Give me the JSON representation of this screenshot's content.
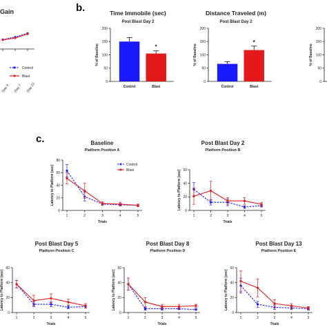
{
  "panels": {
    "b": "b.",
    "c": "c."
  },
  "colors": {
    "control": "#1a1aff",
    "blast": "#e41a1a"
  },
  "chart_data": [
    {
      "id": "weight-gain",
      "type": "line",
      "title": "Gain",
      "x": [
        "Day 3",
        "Day 7",
        "Day 13"
      ],
      "series": [
        {
          "name": "Control",
          "values": [
            3,
            7,
            13
          ]
        },
        {
          "name": "Blast",
          "values": [
            2.5,
            5.5,
            12
          ]
        }
      ],
      "legend": [
        "Control",
        "Blast"
      ]
    },
    {
      "id": "time-immobile",
      "type": "bar",
      "title": "Time Immobile (sec)",
      "subtitle": "Post Blast Day 2",
      "ylabel": "% of Baseline",
      "categories": [
        "Control",
        "Blast"
      ],
      "values": [
        150,
        105
      ],
      "errors": [
        15,
        10
      ],
      "ylim": [
        0,
        200
      ],
      "yticks": [
        0,
        50,
        100,
        150,
        200
      ],
      "annotation": "*"
    },
    {
      "id": "distance-traveled",
      "type": "bar",
      "title": "Distance Traveled (m)",
      "subtitle": "Post Blast Day 2",
      "ylabel": "% of Baseline",
      "categories": [
        "Control",
        "Blast"
      ],
      "values": [
        66,
        118
      ],
      "errors": [
        8,
        15
      ],
      "ylim": [
        0,
        200
      ],
      "yticks": [
        0,
        50,
        100,
        150,
        200
      ],
      "annotation": "*"
    },
    {
      "id": "third-bar-panel",
      "type": "bar",
      "ylabel": "% of Baseline",
      "categories": [],
      "values": []
    },
    {
      "id": "baseline",
      "type": "line",
      "title": "Baseline",
      "subtitle": "Platform Position A",
      "xlabel": "Trials",
      "ylabel": "Latency to Platform (sec)",
      "x": [
        1,
        2,
        3,
        4,
        5
      ],
      "ylim": [
        0,
        80
      ],
      "yticks": [
        0,
        20,
        40,
        60,
        80
      ],
      "series": [
        {
          "name": "Control",
          "values": [
            63,
            22,
            10,
            9,
            8
          ],
          "errors": [
            10,
            7,
            2,
            2,
            2
          ]
        },
        {
          "name": "Blast",
          "values": [
            51,
            31,
            11,
            10,
            8
          ],
          "errors": [
            9,
            12,
            3,
            3,
            2
          ]
        }
      ],
      "legend": [
        "Control",
        "Blast"
      ]
    },
    {
      "id": "post-blast-day-2",
      "type": "line",
      "title": "Post  Blast Day 2",
      "subtitle": "Platform Position B",
      "xlabel": "Trials",
      "ylabel": "Latency to Platform (sec)",
      "x": [
        1,
        2,
        3,
        4,
        5
      ],
      "ylim": [
        0,
        60
      ],
      "yticks": [
        0,
        20,
        40,
        60
      ],
      "series": [
        {
          "name": "Control",
          "values": [
            31,
            12,
            12,
            5,
            7
          ],
          "errors": [
            10,
            4,
            5,
            2,
            2
          ]
        },
        {
          "name": "Blast",
          "values": [
            21,
            29,
            14,
            14,
            9
          ],
          "errors": [
            12,
            14,
            5,
            5,
            3
          ]
        }
      ]
    },
    {
      "id": "post-blast-day-5",
      "type": "line",
      "title": "Post  Blast  Day 5",
      "subtitle": "Platform Position C",
      "xlabel": "Trials",
      "ylabel": "Latency to Platform (sec)",
      "x": [
        1,
        2,
        3,
        4,
        5
      ],
      "ylim": [
        0,
        60
      ],
      "yticks": [
        0,
        20,
        40,
        60
      ],
      "series": [
        {
          "name": "Control",
          "values": [
            38,
            11,
            11,
            7,
            8
          ],
          "errors": [
            5,
            3,
            3,
            2,
            2
          ]
        },
        {
          "name": "Blast",
          "values": [
            38,
            16,
            19,
            14,
            9
          ],
          "errors": [
            5,
            7,
            6,
            4,
            3
          ]
        }
      ]
    },
    {
      "id": "post-blast-day-8",
      "type": "line",
      "title": "Post  Blast  Day 8",
      "subtitle": "Platform Position D",
      "xlabel": "Trials",
      "ylabel": "Latency to Platform (sec)",
      "x": [
        1,
        2,
        3,
        4,
        5
      ],
      "ylim": [
        0,
        60
      ],
      "yticks": [
        0,
        20,
        40,
        60
      ],
      "series": [
        {
          "name": "Control",
          "values": [
            38,
            5,
            5,
            5,
            4
          ],
          "errors": [
            8,
            2,
            2,
            1,
            1
          ]
        },
        {
          "name": "Blast",
          "values": [
            38,
            14,
            8,
            8,
            9
          ],
          "errors": [
            8,
            6,
            3,
            3,
            2
          ]
        }
      ]
    },
    {
      "id": "post-blast-day-13",
      "type": "line",
      "title": "Post  Blast  Day 13",
      "subtitle": "Platform Position E",
      "xlabel": "Trials",
      "ylabel": "Latency to Platform (sec)",
      "x": [
        1,
        2,
        3,
        4,
        5
      ],
      "ylim": [
        0,
        60
      ],
      "yticks": [
        0,
        20,
        40,
        60
      ],
      "series": [
        {
          "name": "Control",
          "values": [
            36,
            11,
            7,
            6,
            5
          ],
          "errors": [
            10,
            4,
            3,
            2,
            2
          ]
        },
        {
          "name": "Blast",
          "values": [
            42,
            33,
            12,
            9,
            6
          ],
          "errors": [
            14,
            12,
            5,
            3,
            2
          ]
        }
      ]
    }
  ]
}
